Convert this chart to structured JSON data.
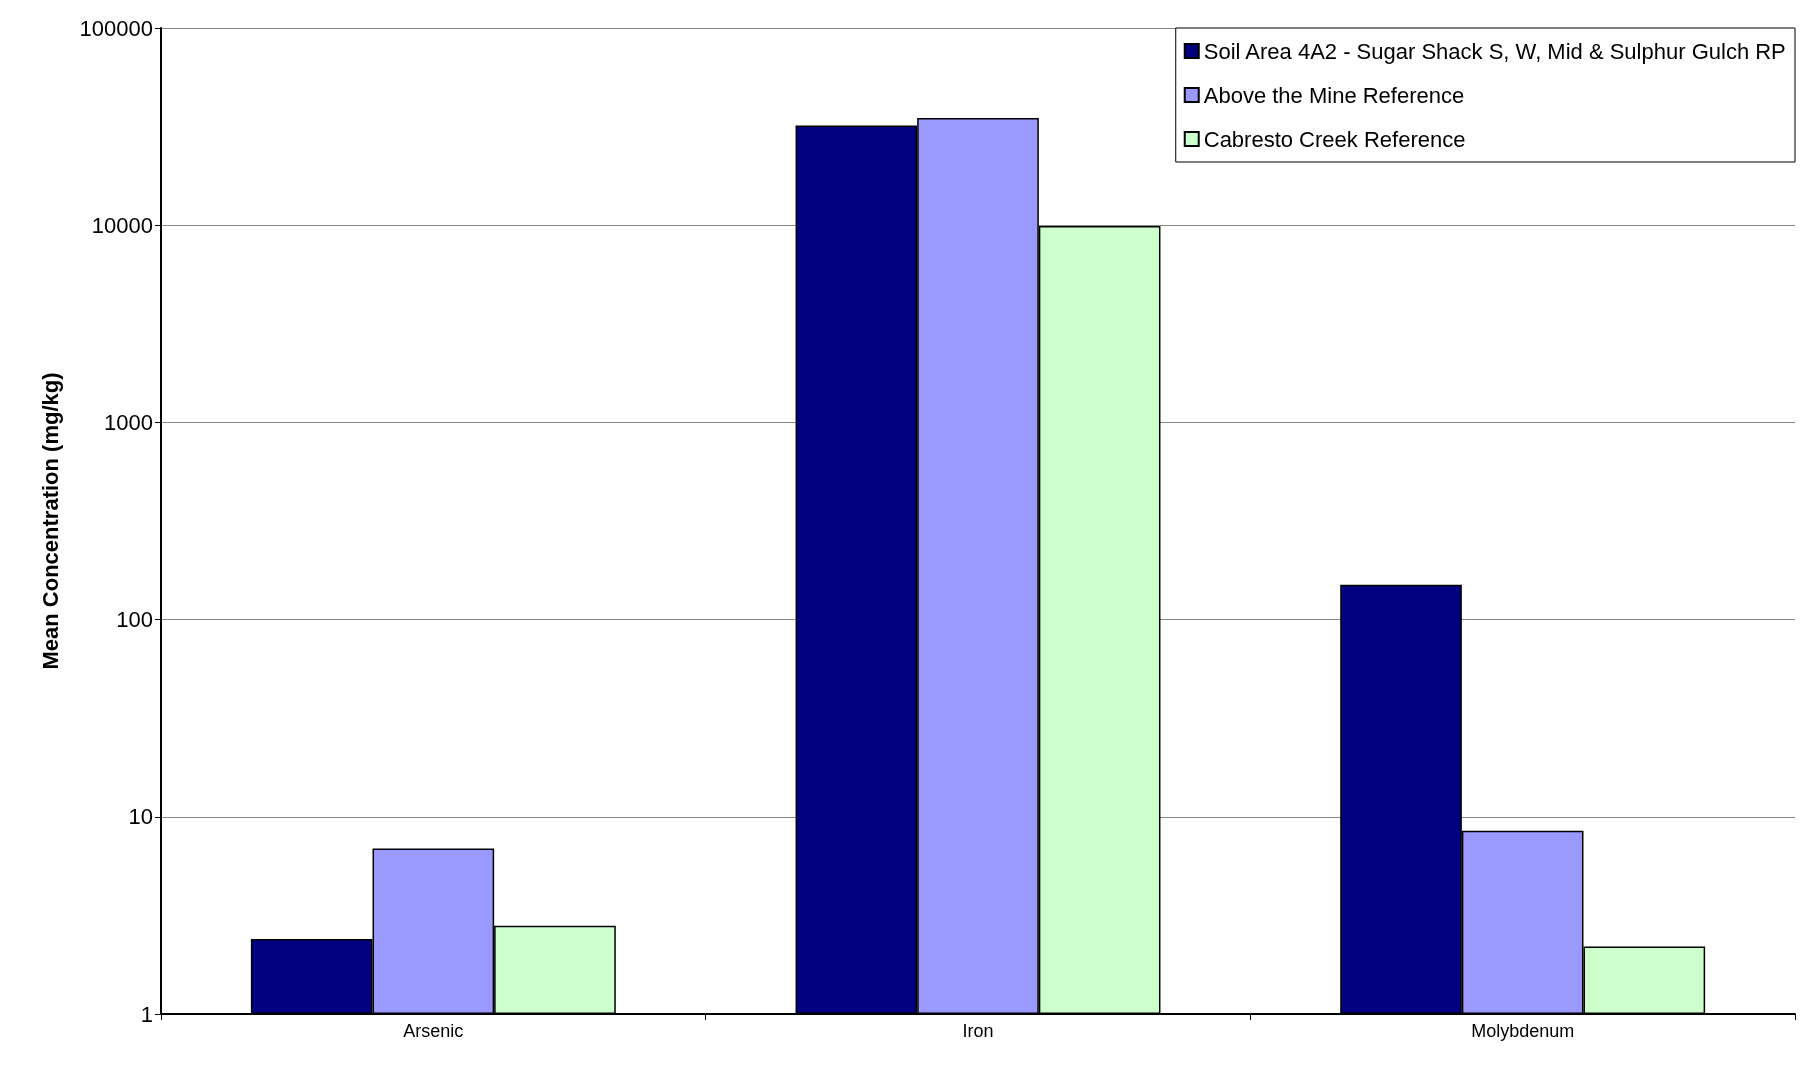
{
  "chart_data": {
    "type": "bar",
    "ylabel": "Mean Concentration (mg/kg)",
    "categories": [
      "Arsenic",
      "Iron",
      "Molybdenum"
    ],
    "series": [
      {
        "name": "Soil Area 4A2 - Sugar Shack S, W, Mid & Sulphur Gulch RP",
        "color": "#000080",
        "values": [
          2.4,
          32000,
          150
        ]
      },
      {
        "name": "Above the Mine Reference",
        "color": "#9999ff",
        "values": [
          6.9,
          35000,
          8.5
        ]
      },
      {
        "name": "Cabresto Creek Reference",
        "color": "#ccffcc",
        "values": [
          2.8,
          9900,
          2.2
        ]
      }
    ],
    "log": "y",
    "ylim": [
      1,
      100000
    ],
    "yticks": [
      1,
      10,
      100,
      1000,
      10000,
      100000
    ],
    "grid": "y",
    "legend": "top right"
  }
}
